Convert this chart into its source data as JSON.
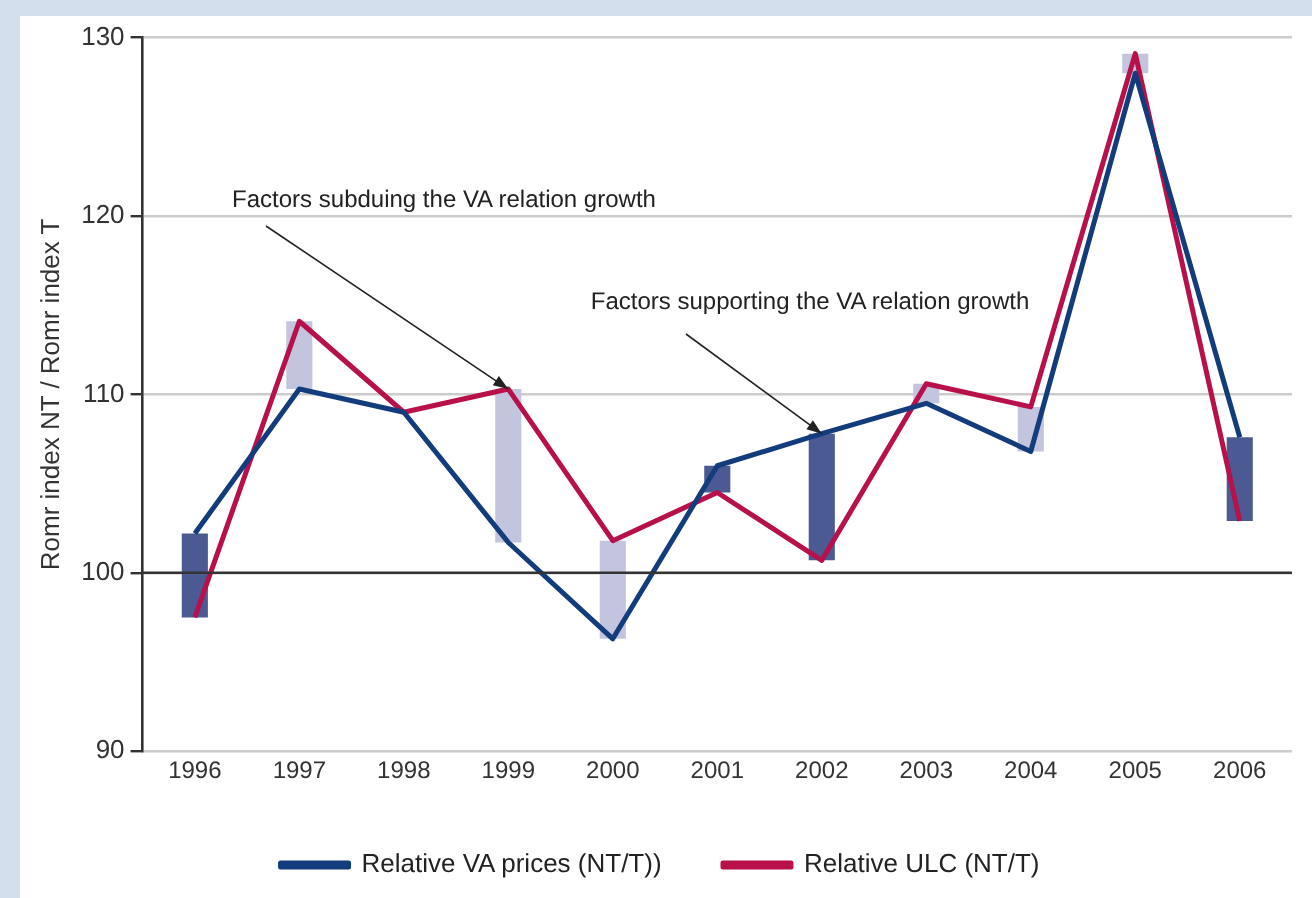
{
  "chart_data": {
    "type": "line",
    "ylabel": "Romr index NT / Romr index T",
    "categories": [
      "1996",
      "1997",
      "1998",
      "1999",
      "2000",
      "2001",
      "2002",
      "2003",
      "2004",
      "2005",
      "2006"
    ],
    "series": [
      {
        "type": "bar",
        "colors": [
          "#4b5a92",
          "#c2c5dd",
          "#c2c5dd",
          "#c2c5dd",
          "#c2c5dd",
          "#4b5a92",
          "#4b5a92",
          "#c2c5dd",
          "#c2c5dd",
          "#c2c5dd",
          "#4b5a92"
        ],
        "base": [
          97.5,
          110.3,
          null,
          101.7,
          96.3,
          104.5,
          100.7,
          109.5,
          106.8,
          128.0,
          102.9
        ],
        "values": [
          4.7,
          3.8,
          null,
          8.6,
          5.5,
          1.5,
          7.1,
          1.1,
          2.5,
          1.1,
          4.7
        ]
      },
      {
        "name": "Relative VA prices (NT/T))",
        "color": "#133c7c",
        "values": [
          102.2,
          110.3,
          109.0,
          101.7,
          96.3,
          106.0,
          107.8,
          109.5,
          106.8,
          128.0,
          107.6
        ]
      },
      {
        "name": "Relative ULC (NT/T)",
        "color": "#b8104a",
        "values": [
          97.5,
          114.1,
          109.0,
          110.3,
          101.8,
          104.5,
          100.7,
          110.6,
          109.3,
          129.1,
          102.9
        ]
      }
    ],
    "annotations": [
      {
        "text": "Factors subduing the VA relation growth",
        "x": "1999",
        "y": 110.3
      },
      {
        "text": "Factors supporting the VA relation growth",
        "x": "2002",
        "y": 107.8
      }
    ],
    "ylim": [
      90,
      130
    ],
    "yticks": [
      90,
      100,
      110,
      120,
      130
    ],
    "ref_lines": [
      {
        "axis": "y",
        "value": 100,
        "color": "#333333"
      }
    ],
    "grid": "y",
    "legend": "bottom",
    "marker": "none",
    "line_style": "solid"
  }
}
